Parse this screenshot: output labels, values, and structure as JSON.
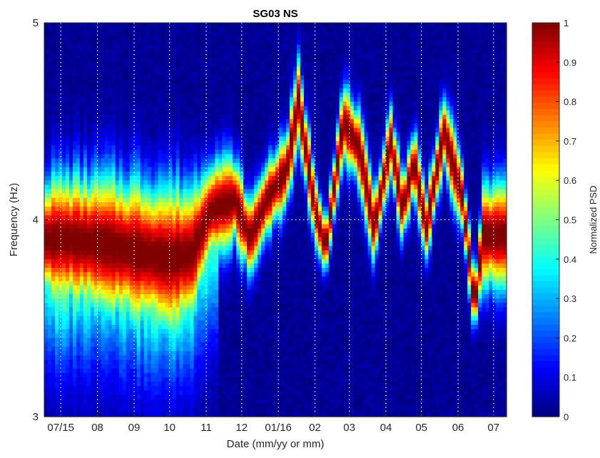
{
  "chart_data": {
    "type": "heatmap",
    "title": "SG03 NS",
    "xlabel": "Date (mm/yy or mm)",
    "ylabel": "Frequency (Hz)",
    "ylim": [
      3,
      5
    ],
    "x_ticks": [
      {
        "label": "07/15",
        "date": "2015-07-01"
      },
      {
        "label": "08",
        "date": "2015-08-01"
      },
      {
        "label": "09",
        "date": "2015-09-01"
      },
      {
        "label": "10",
        "date": "2015-10-01"
      },
      {
        "label": "11",
        "date": "2015-11-01"
      },
      {
        "label": "12",
        "date": "2015-12-01"
      },
      {
        "label": "01/16",
        "date": "2016-01-01"
      },
      {
        "label": "02",
        "date": "2016-02-01"
      },
      {
        "label": "03",
        "date": "2016-03-01"
      },
      {
        "label": "04",
        "date": "2016-04-01"
      },
      {
        "label": "05",
        "date": "2016-05-01"
      },
      {
        "label": "06",
        "date": "2016-06-01"
      },
      {
        "label": "07",
        "date": "2016-07-01"
      }
    ],
    "y_ticks": [
      3,
      4,
      5
    ],
    "colorbar": {
      "label": "Normalized PSD",
      "range": [
        0,
        1
      ],
      "ticks": [
        0,
        0.1,
        0.2,
        0.3,
        0.4,
        0.5,
        0.6,
        0.7,
        0.8,
        0.9,
        1
      ],
      "colormap": "jet"
    },
    "x_range": [
      "2015-06-17",
      "2016-07-12"
    ],
    "ridge": {
      "description": "peak frequency of the normalized PSD over time",
      "points": [
        {
          "date": "2015-06-17",
          "peak_hz": 3.9,
          "width_hz": 0.2
        },
        {
          "date": "2015-07-01",
          "peak_hz": 3.9,
          "width_hz": 0.21
        },
        {
          "date": "2015-08-01",
          "peak_hz": 3.88,
          "width_hz": 0.22
        },
        {
          "date": "2015-09-01",
          "peak_hz": 3.84,
          "width_hz": 0.24
        },
        {
          "date": "2015-10-01",
          "peak_hz": 3.8,
          "width_hz": 0.25
        },
        {
          "date": "2015-10-20",
          "peak_hz": 3.83,
          "width_hz": 0.22
        },
        {
          "date": "2015-11-05",
          "peak_hz": 4.05,
          "width_hz": 0.17
        },
        {
          "date": "2015-11-25",
          "peak_hz": 4.1,
          "width_hz": 0.14
        },
        {
          "date": "2015-12-08",
          "peak_hz": 3.9,
          "width_hz": 0.12
        },
        {
          "date": "2015-12-22",
          "peak_hz": 4.1,
          "width_hz": 0.12
        },
        {
          "date": "2016-01-08",
          "peak_hz": 4.25,
          "width_hz": 0.12
        },
        {
          "date": "2016-01-18",
          "peak_hz": 4.6,
          "width_hz": 0.13
        },
        {
          "date": "2016-02-01",
          "peak_hz": 4.05,
          "width_hz": 0.12
        },
        {
          "date": "2016-02-10",
          "peak_hz": 3.85,
          "width_hz": 0.1
        },
        {
          "date": "2016-02-25",
          "peak_hz": 4.5,
          "width_hz": 0.12
        },
        {
          "date": "2016-03-10",
          "peak_hz": 4.35,
          "width_hz": 0.12
        },
        {
          "date": "2016-03-22",
          "peak_hz": 3.95,
          "width_hz": 0.11
        },
        {
          "date": "2016-04-05",
          "peak_hz": 4.4,
          "width_hz": 0.12
        },
        {
          "date": "2016-04-15",
          "peak_hz": 4.05,
          "width_hz": 0.11
        },
        {
          "date": "2016-04-25",
          "peak_hz": 4.3,
          "width_hz": 0.11
        },
        {
          "date": "2016-05-05",
          "peak_hz": 3.95,
          "width_hz": 0.11
        },
        {
          "date": "2016-05-20",
          "peak_hz": 4.45,
          "width_hz": 0.12
        },
        {
          "date": "2016-06-05",
          "peak_hz": 4.1,
          "width_hz": 0.11
        },
        {
          "date": "2016-06-15",
          "peak_hz": 3.55,
          "width_hz": 0.09
        },
        {
          "date": "2016-06-22",
          "peak_hz": 3.92,
          "width_hz": 0.16
        },
        {
          "date": "2016-07-12",
          "peak_hz": 3.92,
          "width_hz": 0.18
        }
      ]
    },
    "grid": "dotted white vertical lines at each month, horizontal line at 4 Hz",
    "legend": "none (colorbar on right)"
  }
}
